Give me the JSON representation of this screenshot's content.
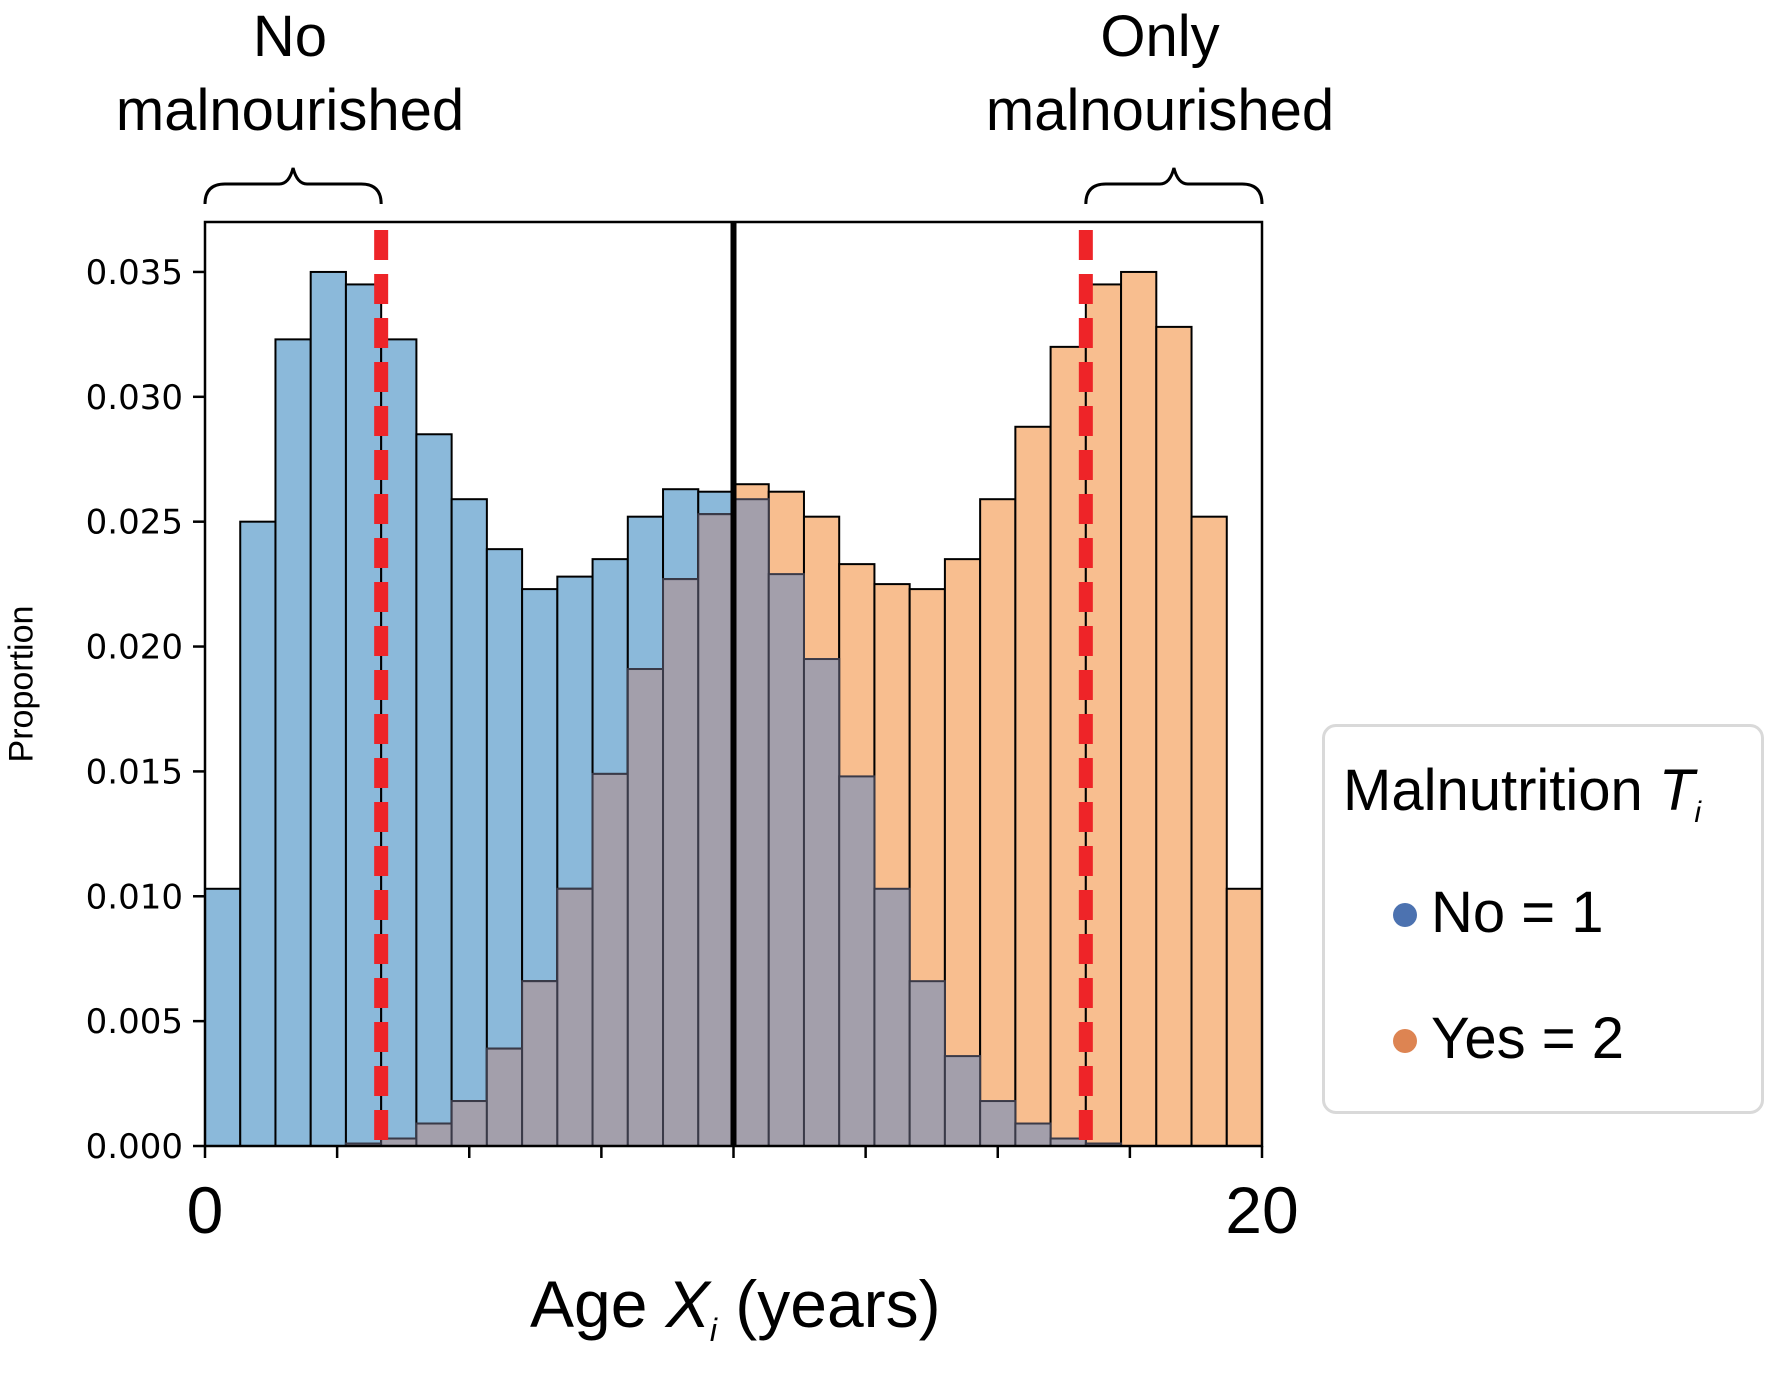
{
  "chart_data": {
    "type": "bar",
    "xlabel_prefix": "Age ",
    "xlabel_var": "X",
    "xlabel_sub": "i",
    "xlabel_suffix": " (years)",
    "ylabel": "Proportion",
    "xlim": [
      0,
      20
    ],
    "ylim": [
      0,
      0.037
    ],
    "xtick_labels": [
      "0",
      "20"
    ],
    "ytick_labels": [
      "0.000",
      "0.005",
      "0.010",
      "0.015",
      "0.020",
      "0.025",
      "0.030",
      "0.035"
    ],
    "ytick_values": [
      0,
      0.005,
      0.01,
      0.015,
      0.02,
      0.025,
      0.03,
      0.035
    ],
    "bin_width": 0.6667,
    "bin_starts": [
      0,
      0.6667,
      1.3333,
      2.0,
      2.6667,
      3.3333,
      4.0,
      4.6667,
      5.3333,
      6.0,
      6.6667,
      7.3333,
      8.0,
      8.6667,
      9.3333,
      10.0,
      10.6667,
      11.3333,
      12.0,
      12.6667,
      13.3333,
      14.0,
      14.6667,
      15.3333,
      16.0,
      16.6667,
      17.3333,
      18.0,
      18.6667,
      19.3333
    ],
    "series": [
      {
        "name": "No = 1",
        "color": "#8bb9da",
        "values": [
          0.0103,
          0.025,
          0.0323,
          0.035,
          0.0345,
          0.0323,
          0.0285,
          0.0259,
          0.0239,
          0.0223,
          0.0228,
          0.0235,
          0.0252,
          0.0263,
          0.0262,
          0.0259,
          0.0229,
          0.0195,
          0.0148,
          0.0103,
          0.0066,
          0.0036,
          0.0018,
          0.0009,
          0.0003,
          0.0001,
          0,
          0,
          0,
          0
        ]
      },
      {
        "name": "Yes = 2",
        "color": "#f8be8f",
        "values": [
          0,
          0,
          0,
          0,
          0.0001,
          0.0003,
          0.0009,
          0.0018,
          0.0039,
          0.0066,
          0.0103,
          0.0149,
          0.0191,
          0.0227,
          0.0253,
          0.0265,
          0.0262,
          0.0252,
          0.0233,
          0.0225,
          0.0223,
          0.0235,
          0.0259,
          0.0288,
          0.032,
          0.0345,
          0.035,
          0.0328,
          0.0252,
          0.0103
        ]
      }
    ],
    "overlap_color": "#a39fab",
    "cutoff_line_x": 10,
    "red_dashed_lines_x": [
      3.3333,
      16.6667
    ],
    "brace_left_range": [
      0,
      3.3333
    ],
    "brace_right_range": [
      16.6667,
      20
    ],
    "grid": false,
    "legend_position": "right"
  },
  "annotations": {
    "left_line1": "No",
    "left_line2": "malnourished",
    "right_line1": "Only",
    "right_line2": "malnourished"
  },
  "legend": {
    "title_text": "Malnutrition ",
    "title_var": "T",
    "title_sub": "i",
    "items": [
      {
        "label": "No = 1",
        "color": "#4c72b0"
      },
      {
        "label": "Yes = 2",
        "color": "#dd8452"
      }
    ]
  }
}
